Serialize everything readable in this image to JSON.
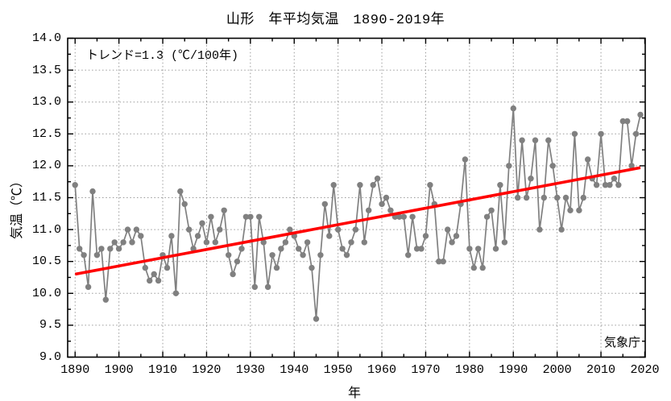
{
  "title": "山形　年平均気温　1890-2019年",
  "annotations": {
    "trend_label": "トレンド=1.3 (℃/100年)",
    "source_label": "気象庁"
  },
  "colors": {
    "series": "#808080",
    "trend": "#ff0000",
    "grid": "#9a9a9a",
    "axis": "#000000",
    "background": "#ffffff"
  },
  "chart_data": {
    "type": "line",
    "title": "山形　年平均気温　1890-2019年",
    "xlabel": "年",
    "ylabel": "気温（℃）",
    "legend_position": "none",
    "grid": "dotted",
    "xlim": [
      1888.3,
      2020.1
    ],
    "ylim": [
      9.0,
      14.0
    ],
    "x_ticks_major": [
      1890,
      1900,
      1910,
      1920,
      1930,
      1940,
      1950,
      1960,
      1970,
      1980,
      1990,
      2000,
      2010,
      2020
    ],
    "x_minor_step": 5,
    "y_ticks_major": [
      9.0,
      9.5,
      10.0,
      10.5,
      11.0,
      11.5,
      12.0,
      12.5,
      13.0,
      13.5,
      14.0
    ],
    "y_minor_step": 0.25,
    "series_name": "年平均気温",
    "x": [
      1890,
      1891,
      1892,
      1893,
      1894,
      1895,
      1896,
      1897,
      1898,
      1899,
      1900,
      1901,
      1902,
      1903,
      1904,
      1905,
      1906,
      1907,
      1908,
      1909,
      1910,
      1911,
      1912,
      1913,
      1914,
      1915,
      1916,
      1917,
      1918,
      1919,
      1920,
      1921,
      1922,
      1923,
      1924,
      1925,
      1926,
      1927,
      1928,
      1929,
      1930,
      1931,
      1932,
      1933,
      1934,
      1935,
      1936,
      1937,
      1938,
      1939,
      1940,
      1941,
      1942,
      1943,
      1944,
      1945,
      1946,
      1947,
      1948,
      1949,
      1950,
      1951,
      1952,
      1953,
      1954,
      1955,
      1956,
      1957,
      1958,
      1959,
      1960,
      1961,
      1962,
      1963,
      1964,
      1965,
      1966,
      1967,
      1968,
      1969,
      1970,
      1971,
      1972,
      1973,
      1974,
      1975,
      1976,
      1977,
      1978,
      1979,
      1980,
      1981,
      1982,
      1983,
      1984,
      1985,
      1986,
      1987,
      1988,
      1989,
      1990,
      1991,
      1992,
      1993,
      1994,
      1995,
      1996,
      1997,
      1998,
      1999,
      2000,
      2001,
      2002,
      2003,
      2004,
      2005,
      2006,
      2007,
      2008,
      2009,
      2010,
      2011,
      2012,
      2013,
      2014,
      2015,
      2016,
      2017,
      2018,
      2019
    ],
    "values": [
      11.7,
      10.7,
      10.6,
      10.1,
      11.6,
      10.6,
      10.7,
      9.9,
      10.7,
      10.8,
      10.7,
      10.8,
      11.0,
      10.8,
      11.0,
      10.9,
      10.4,
      10.2,
      10.3,
      10.2,
      10.6,
      10.4,
      10.9,
      10.0,
      11.6,
      11.4,
      11.0,
      10.7,
      10.9,
      11.1,
      10.8,
      11.2,
      10.8,
      11.0,
      11.3,
      10.6,
      10.3,
      10.5,
      10.7,
      11.2,
      11.2,
      10.1,
      11.2,
      10.8,
      10.1,
      10.6,
      10.4,
      10.7,
      10.8,
      11.0,
      10.9,
      10.7,
      10.6,
      10.8,
      10.4,
      9.6,
      10.6,
      11.4,
      10.9,
      11.7,
      11.0,
      10.7,
      10.6,
      10.8,
      11.0,
      11.7,
      10.8,
      11.3,
      11.7,
      11.8,
      11.4,
      11.5,
      11.3,
      11.2,
      11.2,
      11.2,
      10.6,
      11.2,
      10.7,
      10.7,
      10.9,
      11.7,
      11.4,
      10.5,
      10.5,
      11.0,
      10.8,
      10.9,
      11.4,
      12.1,
      10.7,
      10.4,
      10.7,
      10.4,
      11.2,
      11.3,
      10.7,
      11.7,
      10.8,
      12.0,
      12.9,
      11.5,
      12.4,
      11.5,
      11.8,
      12.4,
      11.0,
      11.5,
      12.4,
      12.0,
      11.5,
      11.0,
      11.5,
      11.3,
      12.5,
      11.3,
      11.5,
      12.1,
      11.8,
      11.7,
      12.5,
      11.7,
      11.7,
      11.8,
      11.7,
      12.7,
      12.7,
      12.0,
      12.5,
      12.8
    ],
    "trend_line": {
      "rate_c_per_100yr": 1.3,
      "x1": 1890,
      "y1": 10.3,
      "x2": 2019,
      "y2": 11.97
    }
  }
}
